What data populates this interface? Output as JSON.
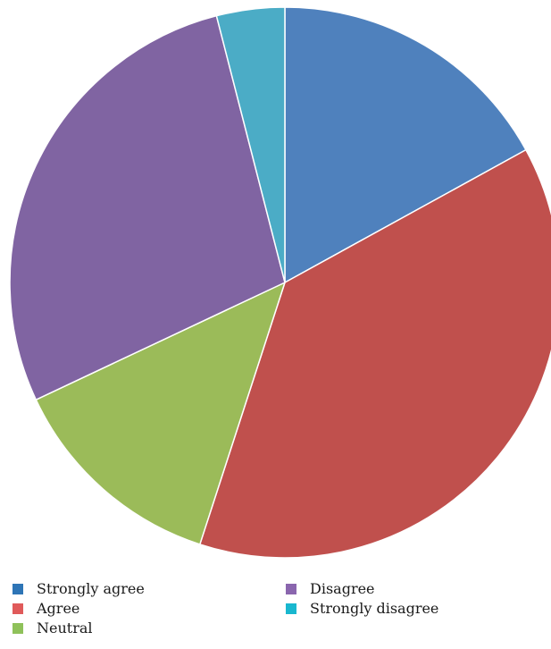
{
  "chart_data": {
    "type": "pie",
    "title": "",
    "start_angle_deg": 0,
    "direction": "clockwise",
    "slices": [
      {
        "label": "Strongly agree",
        "value": 17,
        "color": "#4F81BD"
      },
      {
        "label": "Agree",
        "value": 38,
        "color": "#C0504D"
      },
      {
        "label": "Neutral",
        "value": 13,
        "color": "#9BBB59"
      },
      {
        "label": "Disagree",
        "value": 28,
        "color": "#8064A2"
      },
      {
        "label": "Strongly disagree",
        "value": 4,
        "color": "#4BACC6"
      }
    ],
    "legend": {
      "placement": "bottom",
      "items": [
        {
          "label": "Strongly agree",
          "color": "#2E75B6"
        },
        {
          "label": "Agree",
          "color": "#E05A5A"
        },
        {
          "label": "Neutral",
          "color": "#8FC15A"
        },
        {
          "label": "Disagree",
          "color": "#8A66AE"
        },
        {
          "label": "Strongly disagree",
          "color": "#19B7CF"
        }
      ]
    }
  }
}
